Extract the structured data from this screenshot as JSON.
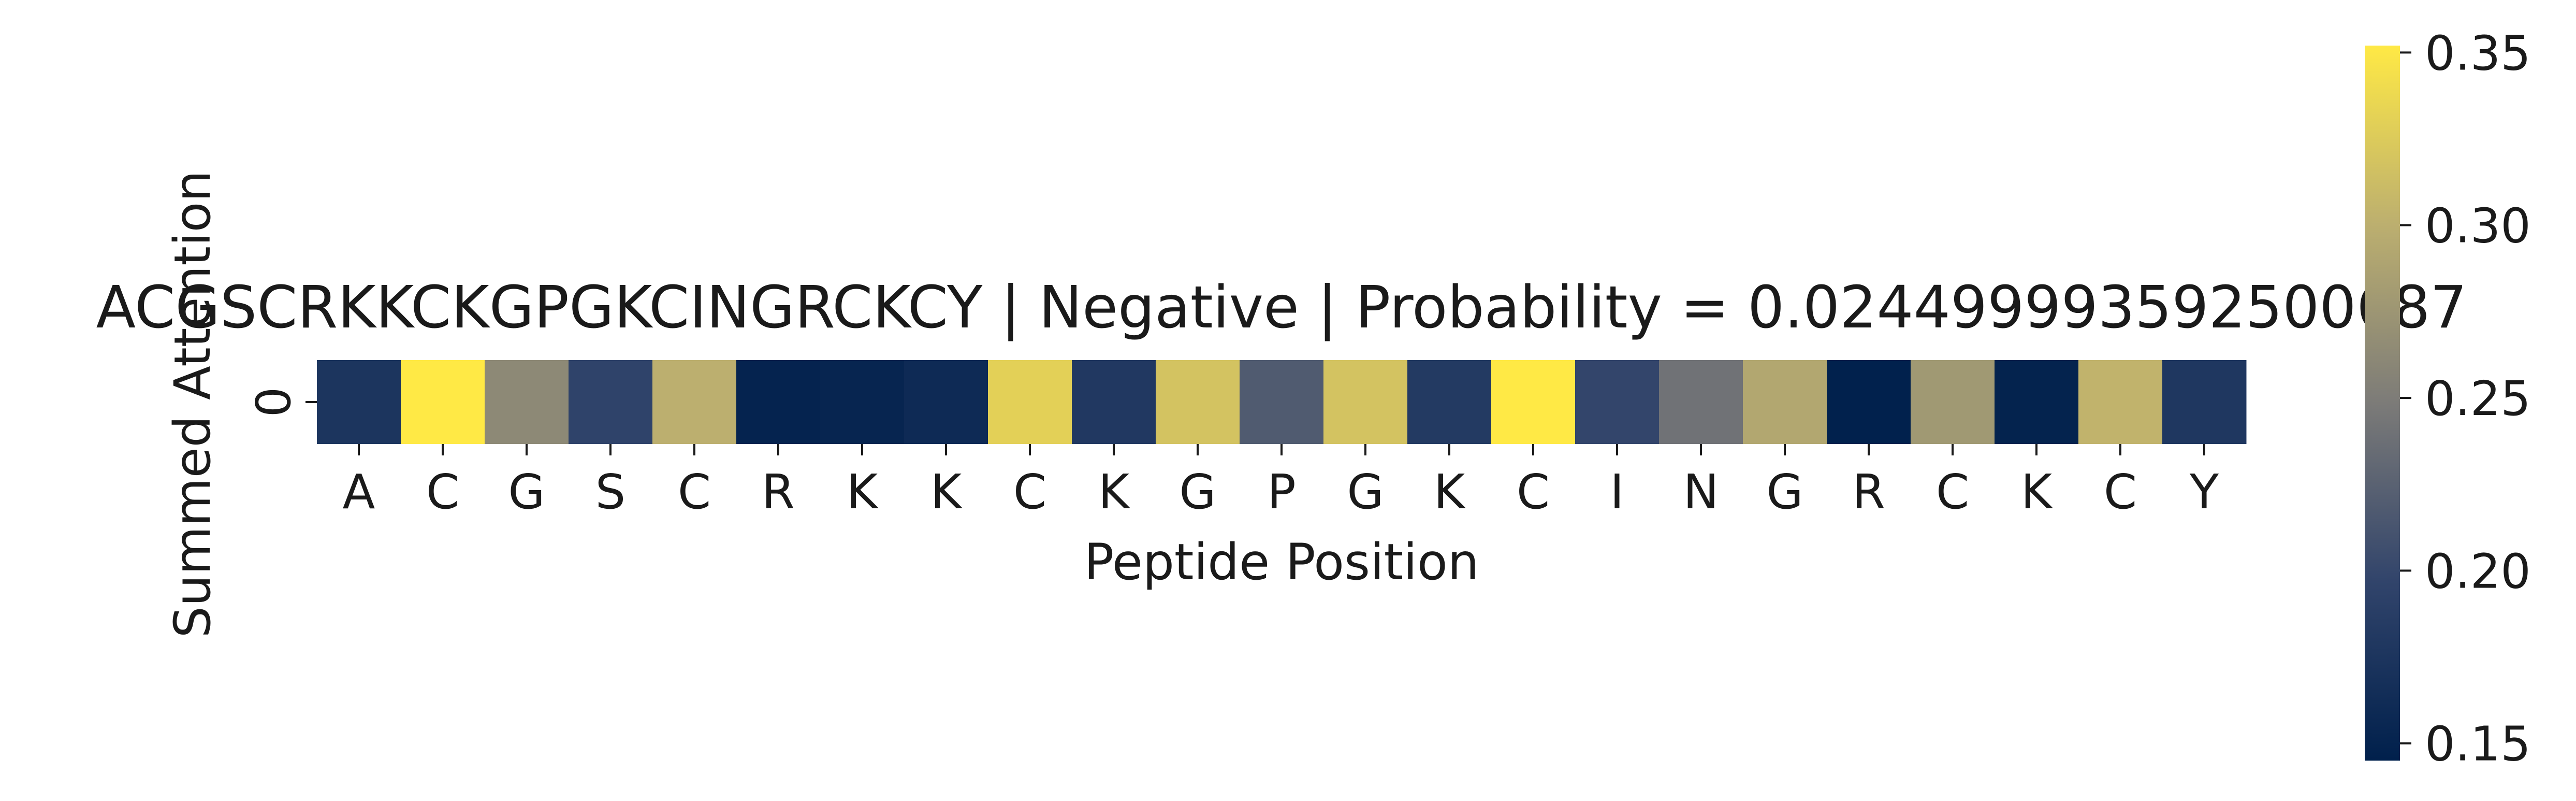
{
  "chart_data": {
    "type": "heatmap",
    "title": "ACGSCRKKCKGPGKCINGRCKCY | Negative | Probability = 0.024499993592500687",
    "xlabel": "Peptide Position",
    "ylabel": "Summed Attention",
    "y_categories": [
      "0"
    ],
    "x_categories": [
      "A",
      "C",
      "G",
      "S",
      "C",
      "R",
      "K",
      "K",
      "C",
      "K",
      "G",
      "P",
      "G",
      "K",
      "C",
      "I",
      "N",
      "G",
      "R",
      "C",
      "K",
      "C",
      "Y"
    ],
    "values": [
      [
        0.175,
        0.352,
        0.262,
        0.195,
        0.3,
        0.15,
        0.152,
        0.16,
        0.33,
        0.18,
        0.318,
        0.218,
        0.318,
        0.182,
        0.352,
        0.198,
        0.24,
        0.292,
        0.146,
        0.278,
        0.149,
        0.304,
        0.178
      ]
    ],
    "colormap": "cividis",
    "colorbar": {
      "vmin": 0.145,
      "vmax": 0.352,
      "ticks": [
        0.15,
        0.2,
        0.25,
        0.3,
        0.35
      ],
      "tick_labels": [
        "0.15",
        "0.20",
        "0.25",
        "0.30",
        "0.35"
      ]
    }
  }
}
